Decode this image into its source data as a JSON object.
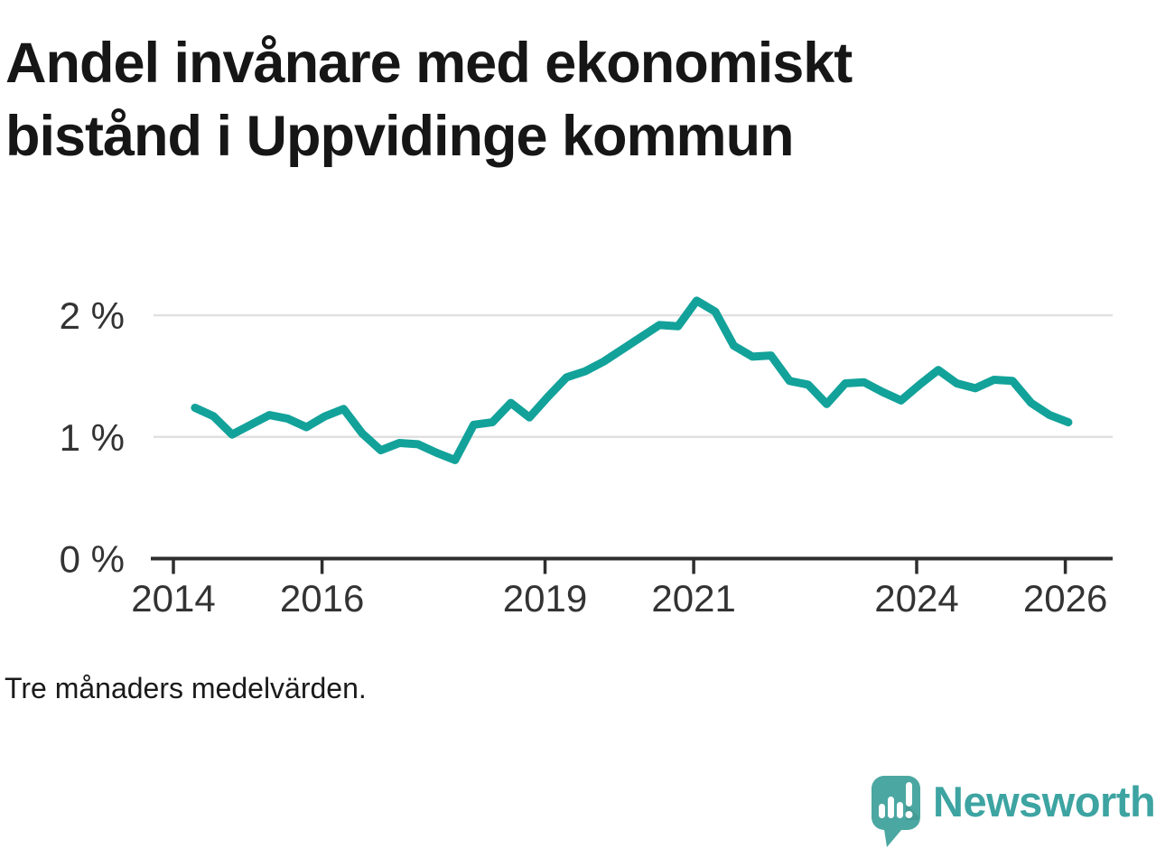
{
  "title": "Andel invånare med ekonomiskt bistånd i Uppvidinge kommun",
  "title_lines": [
    "Andel invånare med ekonomiskt",
    "bistånd i Uppvidinge kommun"
  ],
  "caption": "Tre månaders medelvärden.",
  "branding": {
    "logo_icon": "newsworthy-speech-bubble-bar-chart-icon",
    "logo_text": "Newsworthy"
  },
  "colors": {
    "line": "#12a29a",
    "grid": "#e0e0e0",
    "axis": "#2e2e2e",
    "tick_text": "#333333",
    "title": "#161616",
    "caption": "#1a1a1a",
    "logo": "#4ba7a1",
    "logo_shadow": "#3e918c",
    "logo_text": "#3da4a2",
    "background": "#ffffff"
  },
  "chart_data": {
    "type": "line",
    "title": "Andel invånare med ekonomiskt bistånd i Uppvidinge kommun",
    "subtitle": "Tre månaders medelvärden.",
    "unit": "%",
    "series_name": "Andel invånare med ekonomiskt bistånd",
    "x": [
      2014.29,
      2014.54,
      2014.79,
      2015.04,
      2015.29,
      2015.54,
      2015.79,
      2016.04,
      2016.29,
      2016.54,
      2016.79,
      2017.04,
      2017.29,
      2017.54,
      2017.79,
      2018.04,
      2018.29,
      2018.54,
      2018.79,
      2019.04,
      2019.29,
      2019.54,
      2019.79,
      2020.04,
      2020.29,
      2020.54,
      2020.79,
      2021.04,
      2021.29,
      2021.54,
      2021.79,
      2022.04,
      2022.29,
      2022.54,
      2022.79,
      2023.04,
      2023.29,
      2023.54,
      2023.79,
      2024.04,
      2024.29,
      2024.54,
      2024.79,
      2025.04,
      2025.29,
      2025.54,
      2025.79,
      2026.04
    ],
    "values": [
      1.24,
      1.17,
      1.02,
      1.1,
      1.18,
      1.15,
      1.08,
      1.17,
      1.23,
      1.03,
      0.89,
      0.95,
      0.94,
      0.87,
      0.81,
      1.1,
      1.12,
      1.28,
      1.16,
      1.33,
      1.49,
      1.54,
      1.62,
      1.72,
      1.82,
      1.92,
      1.91,
      2.12,
      2.03,
      1.75,
      1.66,
      1.67,
      1.46,
      1.43,
      1.27,
      1.44,
      1.45,
      1.37,
      1.3,
      1.43,
      1.55,
      1.44,
      1.4,
      1.47,
      1.46,
      1.28,
      1.18,
      1.12
    ],
    "x_ticks": [
      {
        "value": 2014,
        "label": "2014"
      },
      {
        "value": 2016,
        "label": "2016"
      },
      {
        "value": 2019,
        "label": "2019"
      },
      {
        "value": 2021,
        "label": "2021"
      },
      {
        "value": 2024,
        "label": "2024"
      },
      {
        "value": 2026,
        "label": "2026"
      }
    ],
    "y_ticks": [
      {
        "value": 0,
        "label": "0 %"
      },
      {
        "value": 1,
        "label": "1 %"
      },
      {
        "value": 2,
        "label": "2 %"
      }
    ],
    "xlim": [
      2013.73,
      2026.64
    ],
    "ylim": [
      0,
      2.36
    ],
    "grid": "horizontal-only",
    "legend": "none"
  }
}
